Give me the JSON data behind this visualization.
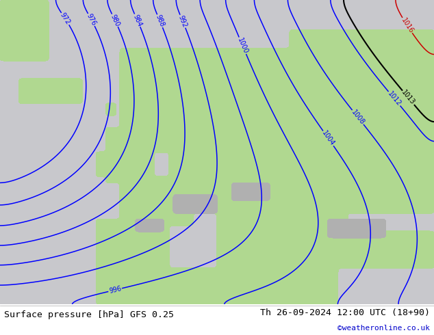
{
  "title_left": "Surface pressure [hPa] GFS 0.25",
  "title_right": "Th 26-09-2024 12:00 UTC (18+90)",
  "credit": "©weatheronline.co.uk",
  "credit_color": "#0000cc",
  "bg_color": "#c8c8c8",
  "land_color": "#b0d890",
  "water_color": "#c8c8cc",
  "text_color_left": "#000000",
  "text_color_right": "#000000",
  "contour_low_color": "#0000ff",
  "contour_mid_color": "#000000",
  "contour_high_color": "#cc0000",
  "font_size_title": 9.5,
  "font_size_credit": 8
}
